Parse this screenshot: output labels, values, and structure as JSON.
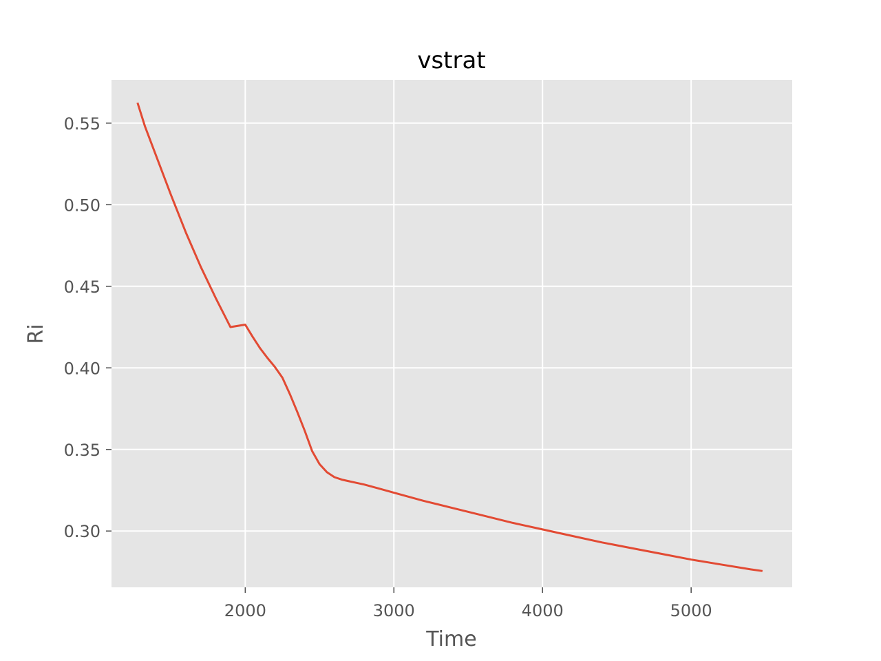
{
  "chart_data": {
    "type": "line",
    "title": "vstrat",
    "xlabel": "Time",
    "ylabel": "Ri",
    "xlim": [
      1100,
      5680
    ],
    "ylim": [
      0.2655,
      0.5765
    ],
    "x_ticks": [
      2000,
      3000,
      4000,
      5000
    ],
    "y_ticks": [
      0.3,
      0.35,
      0.4,
      0.45,
      0.5,
      0.55
    ],
    "x_tick_labels": [
      "2000",
      "3000",
      "4000",
      "5000"
    ],
    "y_tick_labels": [
      "0.30",
      "0.35",
      "0.40",
      "0.45",
      "0.50",
      "0.55"
    ],
    "grid": true,
    "colors": {
      "background": "#e5e5e5",
      "grid": "#ffffff",
      "line": "#e24a33"
    },
    "series": [
      {
        "color": "#e24a33",
        "x": [
          1275,
          1325,
          1400,
          1500,
          1600,
          1700,
          1800,
          1900,
          2000,
          2050,
          2100,
          2150,
          2200,
          2250,
          2300,
          2350,
          2400,
          2450,
          2500,
          2550,
          2600,
          2650,
          2700,
          2800,
          2900,
          3000,
          3200,
          3400,
          3600,
          3800,
          4000,
          4200,
          4400,
          4600,
          4800,
          5000,
          5200,
          5400,
          5480
        ],
        "y": [
          0.5625,
          0.548,
          0.53,
          0.506,
          0.483,
          0.462,
          0.443,
          0.425,
          0.4265,
          0.419,
          0.412,
          0.406,
          0.4005,
          0.394,
          0.384,
          0.373,
          0.3615,
          0.349,
          0.341,
          0.336,
          0.333,
          0.3315,
          0.3305,
          0.3285,
          0.326,
          0.3235,
          0.3185,
          0.314,
          0.3095,
          0.305,
          0.301,
          0.297,
          0.293,
          0.2895,
          0.286,
          0.2825,
          0.2795,
          0.2765,
          0.2755
        ]
      }
    ]
  }
}
